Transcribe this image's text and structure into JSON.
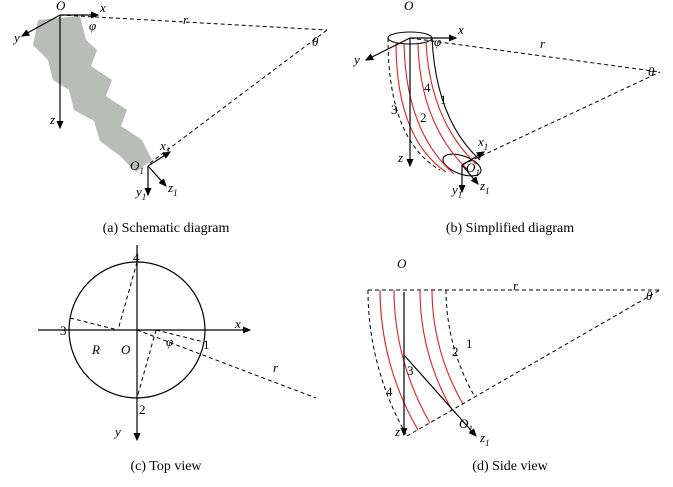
{
  "panels": [
    {
      "caption": "(a) Schematic diagram",
      "labels": [
        "O",
        "x",
        "y",
        "z",
        "φ",
        "r",
        "θ",
        {
          "base": "O",
          "sub": "1"
        },
        {
          "base": "x",
          "sub": "1"
        },
        {
          "base": "y",
          "sub": "1"
        },
        {
          "base": "z",
          "sub": "1"
        }
      ]
    },
    {
      "caption": "(b) Simplified diagram",
      "labels": [
        "O",
        "x",
        "y",
        "z",
        "φ",
        "r",
        "θ",
        {
          "base": "O",
          "sub": "1"
        },
        {
          "base": "x",
          "sub": "1"
        },
        {
          "base": "y",
          "sub": "1"
        },
        {
          "base": "z",
          "sub": "1"
        },
        "1",
        "2",
        "3",
        "4"
      ]
    },
    {
      "caption": "(c) Top view",
      "labels": [
        "x",
        "y",
        "O",
        "R",
        "φ",
        "r",
        "1",
        "2",
        "3",
        "4"
      ]
    },
    {
      "caption": "(d) Side view",
      "labels": [
        "O",
        "r",
        "θ",
        "z",
        {
          "base": "O",
          "sub": "1"
        },
        {
          "base": "z",
          "sub": "1"
        },
        "1",
        "2",
        "3",
        "4"
      ]
    }
  ]
}
